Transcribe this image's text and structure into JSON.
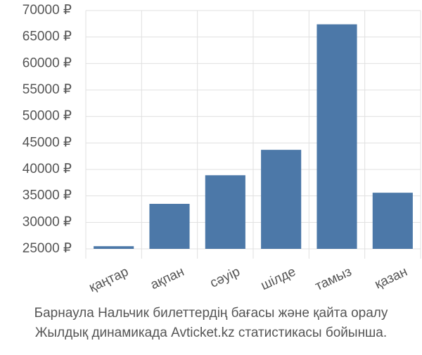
{
  "chart_data": {
    "type": "bar",
    "title": "Барнаула Нальчик билеттердің бағасы және қайта оралу",
    "subtitle": "Жылдық динамикада Avticket.kz статистикасы бойынша.",
    "categories": [
      "қаңтар",
      "ақпан",
      "сәуір",
      "шілде",
      "тамыз",
      "қазан"
    ],
    "values": [
      25500,
      33500,
      38900,
      43700,
      67400,
      35600
    ],
    "color": "#4c78a8",
    "ylim": [
      25000,
      70000
    ],
    "yticks": [
      {
        "value": 25000,
        "label": "25000 ₽"
      },
      {
        "value": 30000,
        "label": "30000 ₽"
      },
      {
        "value": 35000,
        "label": "35000 ₽"
      },
      {
        "value": 40000,
        "label": "40000 ₽"
      },
      {
        "value": 45000,
        "label": "45000 ₽"
      },
      {
        "value": 50000,
        "label": "50000 ₽"
      },
      {
        "value": 55000,
        "label": "55000 ₽"
      },
      {
        "value": 60000,
        "label": "60000 ₽"
      },
      {
        "value": 65000,
        "label": "65000 ₽"
      },
      {
        "value": 70000,
        "label": "70000 ₽"
      }
    ],
    "grid": true
  }
}
